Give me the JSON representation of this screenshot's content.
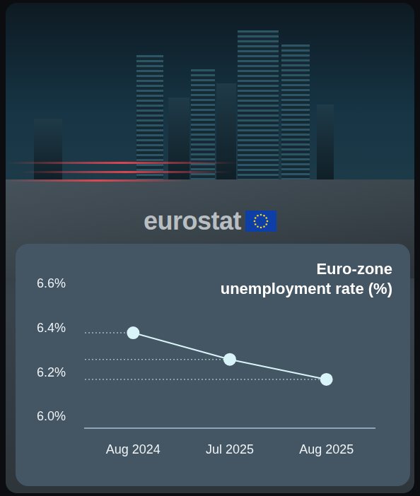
{
  "brand": "eurostat",
  "chart_data": {
    "type": "line",
    "title": "Euro-zone unemployment rate (%)",
    "categories": [
      "Aug 2024",
      "Jul 2025",
      "Aug 2025"
    ],
    "values": [
      6.38,
      6.26,
      6.17
    ],
    "color": "#d9f4f8",
    "ylim": [
      5.95,
      6.6
    ],
    "yticks": [
      {
        "value": 6.0,
        "label": "6.0%"
      },
      {
        "value": 6.2,
        "label": "6.2%"
      },
      {
        "value": 6.4,
        "label": "6.4%"
      },
      {
        "value": 6.6,
        "label": "6.6%"
      }
    ],
    "grid": false,
    "marker": "circle"
  }
}
